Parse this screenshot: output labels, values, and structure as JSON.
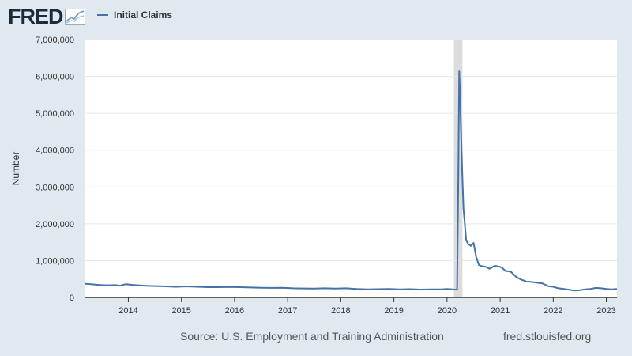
{
  "header": {
    "logo_text": "FRED",
    "legend_label": "Initial Claims"
  },
  "footer": {
    "source": "Source: U.S. Employment and Training Administration",
    "url": "fred.stlouisfed.org"
  },
  "colors": {
    "line": "#4572a7",
    "recession": "#dcdcdc",
    "background": "#e1e9f0",
    "plot_bg": "#ffffff",
    "grid": "#e6e6e6"
  },
  "chart_data": {
    "type": "line",
    "title": "",
    "ylabel": "Number",
    "xlabel": "",
    "ylim": [
      0,
      7000000
    ],
    "yticks": [
      0,
      1000000,
      2000000,
      3000000,
      4000000,
      5000000,
      6000000,
      7000000
    ],
    "ytick_labels": [
      "0",
      "1,000,000",
      "2,000,000",
      "3,000,000",
      "4,000,000",
      "5,000,000",
      "6,000,000",
      "7,000,000"
    ],
    "xlim": [
      2013.19,
      2023.2
    ],
    "xticks": [
      2014,
      2015,
      2016,
      2017,
      2018,
      2019,
      2020,
      2021,
      2022,
      2023
    ],
    "xtick_labels": [
      "2014",
      "2015",
      "2016",
      "2017",
      "2018",
      "2019",
      "2020",
      "2021",
      "2022",
      "2023"
    ],
    "recession": [
      2020.13,
      2020.29
    ],
    "grid": true,
    "legend": "top-left",
    "series": [
      {
        "name": "Initial Claims",
        "x": [
          2013.19,
          2013.3,
          2013.45,
          2013.6,
          2013.75,
          2013.85,
          2013.95,
          2014.1,
          2014.3,
          2014.5,
          2014.7,
          2014.9,
          2015.1,
          2015.3,
          2015.5,
          2015.7,
          2015.9,
          2016.1,
          2016.3,
          2016.5,
          2016.7,
          2016.9,
          2017.1,
          2017.3,
          2017.5,
          2017.7,
          2017.9,
          2018.1,
          2018.3,
          2018.5,
          2018.7,
          2018.9,
          2019.1,
          2019.3,
          2019.5,
          2019.7,
          2019.9,
          2020.0,
          2020.15,
          2020.19,
          2020.21,
          2020.23,
          2020.25,
          2020.27,
          2020.29,
          2020.31,
          2020.33,
          2020.36,
          2020.4,
          2020.45,
          2020.5,
          2020.55,
          2020.6,
          2020.65,
          2020.7,
          2020.75,
          2020.8,
          2020.9,
          2021.0,
          2021.05,
          2021.1,
          2021.2,
          2021.3,
          2021.4,
          2021.5,
          2021.6,
          2021.7,
          2021.8,
          2021.9,
          2022.0,
          2022.1,
          2022.2,
          2022.3,
          2022.4,
          2022.5,
          2022.6,
          2022.7,
          2022.8,
          2022.9,
          2023.0,
          2023.1,
          2023.2
        ],
        "values": [
          370000,
          360000,
          340000,
          330000,
          335000,
          320000,
          360000,
          340000,
          320000,
          310000,
          300000,
          290000,
          300000,
          290000,
          280000,
          280000,
          285000,
          280000,
          270000,
          265000,
          260000,
          265000,
          250000,
          245000,
          240000,
          250000,
          240000,
          250000,
          230000,
          220000,
          225000,
          230000,
          220000,
          225000,
          215000,
          220000,
          220000,
          230000,
          215000,
          211000,
          2920000,
          6140000,
          5300000,
          4200000,
          3200000,
          2400000,
          2100000,
          1550000,
          1450000,
          1400000,
          1480000,
          1100000,
          880000,
          850000,
          840000,
          820000,
          780000,
          860000,
          830000,
          790000,
          720000,
          700000,
          560000,
          480000,
          430000,
          420000,
          400000,
          380000,
          310000,
          290000,
          250000,
          230000,
          210000,
          190000,
          200000,
          220000,
          230000,
          260000,
          250000,
          230000,
          220000,
          230000
        ]
      }
    ]
  }
}
